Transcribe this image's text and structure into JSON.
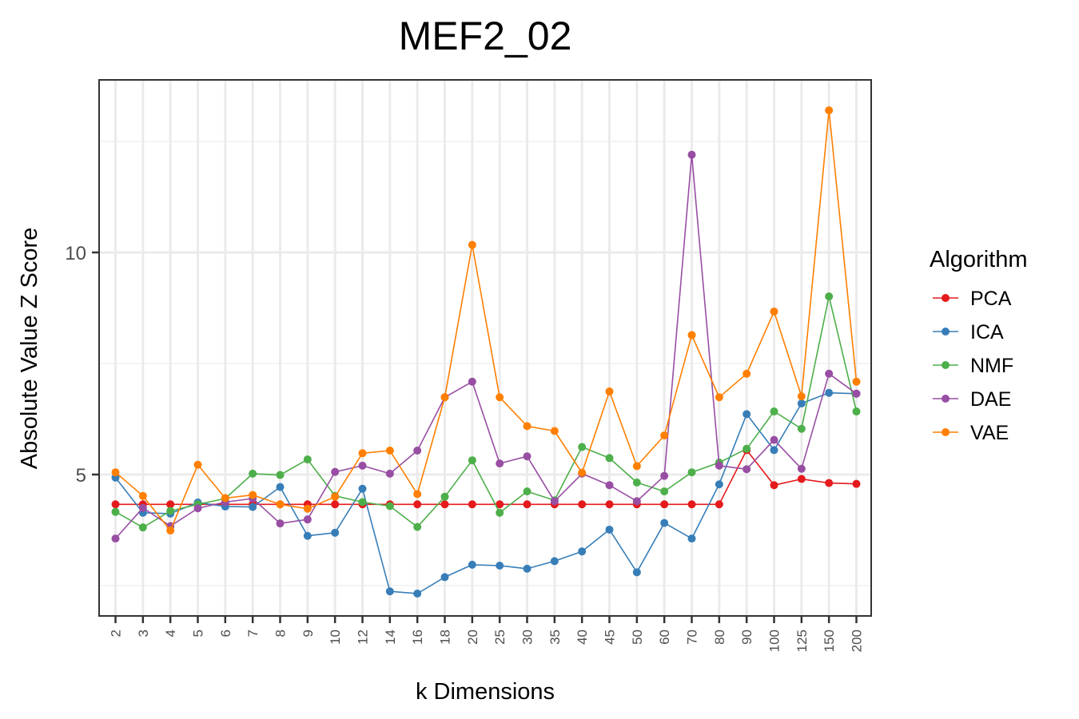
{
  "chart_data": {
    "type": "line",
    "title": "MEF2_02",
    "xlabel": "k Dimensions",
    "ylabel": "Absolute Value Z Score",
    "categories": [
      "2",
      "3",
      "4",
      "5",
      "6",
      "7",
      "8",
      "9",
      "10",
      "12",
      "14",
      "16",
      "18",
      "20",
      "25",
      "30",
      "35",
      "40",
      "45",
      "50",
      "60",
      "70",
      "80",
      "90",
      "100",
      "125",
      "150",
      "200"
    ],
    "yticks": [
      5,
      10
    ],
    "ylim": [
      1.9,
      13.2
    ],
    "grid": true,
    "legend": {
      "title": "Algorithm",
      "position": "right"
    },
    "series": [
      {
        "name": "PCA",
        "color": "#e41a1c",
        "values": [
          4.33,
          4.33,
          4.33,
          4.33,
          4.33,
          4.33,
          4.33,
          4.33,
          4.33,
          4.33,
          4.33,
          4.33,
          4.33,
          4.33,
          4.33,
          4.33,
          4.33,
          4.33,
          4.33,
          4.33,
          4.33,
          4.33,
          4.33,
          5.55,
          4.76,
          4.9,
          4.81,
          4.79
        ]
      },
      {
        "name": "ICA",
        "color": "#377eb8",
        "values": [
          4.93,
          4.14,
          4.12,
          4.37,
          4.28,
          4.27,
          4.72,
          3.62,
          3.69,
          4.68,
          2.37,
          2.32,
          2.69,
          2.97,
          2.95,
          2.88,
          3.05,
          3.27,
          3.76,
          2.8,
          3.91,
          3.56,
          4.78,
          6.36,
          5.55,
          6.6,
          6.84,
          6.82
        ]
      },
      {
        "name": "NMF",
        "color": "#4daf4a",
        "values": [
          4.16,
          3.81,
          4.18,
          4.33,
          4.46,
          5.02,
          4.99,
          5.34,
          4.52,
          4.38,
          4.29,
          3.82,
          4.5,
          5.32,
          4.14,
          4.62,
          4.42,
          5.62,
          5.37,
          4.82,
          4.62,
          5.05,
          5.27,
          5.58,
          6.42,
          6.03,
          9.01,
          6.42
        ]
      },
      {
        "name": "DAE",
        "color": "#984ea3",
        "values": [
          3.56,
          4.25,
          3.84,
          4.24,
          4.38,
          4.46,
          3.9,
          3.99,
          5.06,
          5.2,
          5.02,
          5.54,
          6.74,
          7.09,
          5.25,
          5.41,
          4.4,
          5.02,
          4.76,
          4.4,
          4.97,
          12.2,
          5.2,
          5.12,
          5.78,
          5.13,
          7.27,
          6.82
        ]
      },
      {
        "name": "VAE",
        "color": "#ff7f00",
        "values": [
          5.05,
          4.52,
          3.74,
          5.22,
          4.47,
          4.54,
          4.33,
          4.23,
          4.5,
          5.48,
          5.54,
          4.56,
          6.74,
          10.17,
          6.74,
          6.09,
          5.98,
          5.04,
          6.87,
          5.19,
          5.88,
          8.14,
          6.74,
          7.27,
          8.67,
          6.76,
          13.2,
          7.09
        ]
      }
    ]
  }
}
